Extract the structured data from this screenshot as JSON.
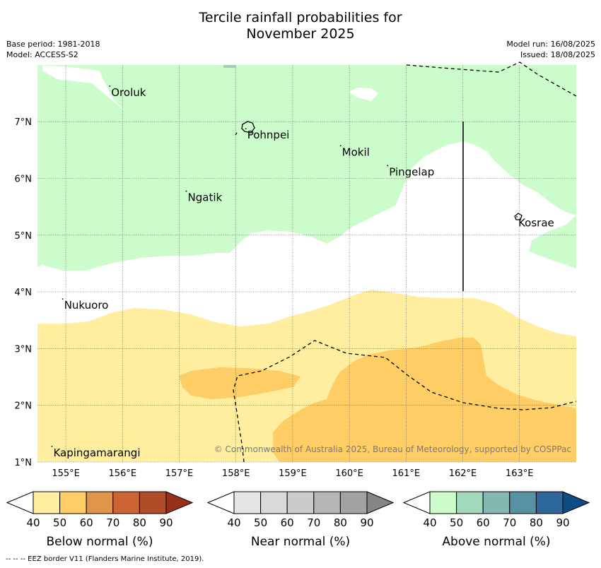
{
  "title_line1": "Tercile rainfall probabilities for",
  "title_line2": "November 2025",
  "base_period": "Base period: 1981-2018",
  "model": "Model: ACCESS-S2",
  "model_run": "Model run: 16/08/2025",
  "issued": "Issued: 18/08/2025",
  "lon_ticks": [
    "155°E",
    "156°E",
    "157°E",
    "158°E",
    "159°E",
    "160°E",
    "161°E",
    "162°E",
    "163°E"
  ],
  "lat_ticks": [
    "7°N",
    "6°N",
    "5°N",
    "4°N",
    "3°N",
    "2°N",
    "1°N"
  ],
  "places": [
    {
      "name": "Oroluk",
      "lon": 155.8,
      "lat": 7.6
    },
    {
      "name": "Pohnpei",
      "lon": 158.2,
      "lat": 6.85
    },
    {
      "name": "Mokil",
      "lon": 159.87,
      "lat": 6.55
    },
    {
      "name": "Pingelap",
      "lon": 160.7,
      "lat": 6.2
    },
    {
      "name": "Ngatik",
      "lon": 157.15,
      "lat": 5.75
    },
    {
      "name": "Kosrae",
      "lon": 162.98,
      "lat": 5.3
    },
    {
      "name": "Nukuoro",
      "lon": 154.97,
      "lat": 3.85
    },
    {
      "name": "Kapingamarangi",
      "lon": 154.78,
      "lat": 1.25
    }
  ],
  "copyright": "© Commonwealth of Australia 2025, Bureau of Meteorology, supported by COSPPac",
  "legends": [
    {
      "label": "Below normal (%)",
      "ticks": [
        "40",
        "50",
        "60",
        "70",
        "80",
        "90"
      ],
      "colors": [
        "#ffeea0",
        "#ffcd66",
        "#e0964a",
        "#cd6532",
        "#b04c28",
        "#993119"
      ]
    },
    {
      "label": "Near normal (%)",
      "ticks": [
        "40",
        "50",
        "60",
        "70",
        "80",
        "90"
      ],
      "colors": [
        "#e6e6e6",
        "#d9d9d9",
        "#cbcbcb",
        "#b6b6b6",
        "#a2a2a2",
        "#858585"
      ]
    },
    {
      "label": "Above normal (%)",
      "ticks": [
        "40",
        "50",
        "60",
        "70",
        "80",
        "90"
      ],
      "colors": [
        "#ccfccc",
        "#a2d9bd",
        "#84b7b0",
        "#5992a4",
        "#30679b",
        "#0f4b84"
      ]
    }
  ],
  "footer": "--  --  -- EEZ border V11 (Flanders Marine Institute, 2019)."
}
